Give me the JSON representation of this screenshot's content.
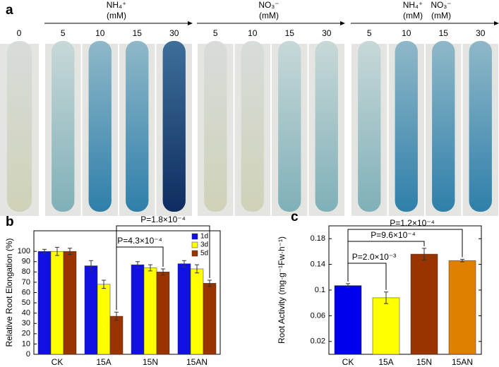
{
  "panel_a": {
    "label": "a",
    "control": 0,
    "groups": [
      {
        "name": "NH₄⁺",
        "unit": "(mM)",
        "concentrations": [
          5,
          10,
          15,
          30
        ]
      },
      {
        "name": "NO₃⁻",
        "unit": "(mM)",
        "concentrations": [
          5,
          10,
          15,
          30
        ]
      },
      {
        "name": "NH₄⁺",
        "unit": "(mM)",
        "name2": "NO₃⁻",
        "unit2": "(mM)",
        "concentrations": [
          5,
          10,
          15,
          30
        ]
      }
    ]
  },
  "chart_data": [
    {
      "type": "bar",
      "panel_label": "b",
      "y_label": "Relative Root Elongation (%)",
      "categories": [
        "CK",
        "15A",
        "15N",
        "15AN"
      ],
      "series": [
        {
          "name": "1d",
          "color": "#1010e0",
          "values": [
            100,
            86,
            87,
            88
          ],
          "errors": [
            2,
            5,
            3,
            3
          ]
        },
        {
          "name": "3d",
          "color": "#ffff00",
          "values": [
            100,
            68,
            84,
            83
          ],
          "errors": [
            4,
            4,
            3,
            4
          ]
        },
        {
          "name": "5d",
          "color": "#993300",
          "values": [
            100,
            37,
            80,
            69
          ],
          "errors": [
            3,
            4,
            3,
            3
          ]
        }
      ],
      "ylim": [
        0,
        120
      ],
      "yticks": [
        0,
        10,
        20,
        30,
        40,
        50,
        60,
        70,
        80,
        90,
        100
      ],
      "legend": "upper-right",
      "annotations": [
        "P=1.8×10⁻⁴",
        "P=4.3×10⁻⁴"
      ]
    },
    {
      "type": "bar",
      "panel_label": "c",
      "y_label": "Root Activity (mg·g⁻¹Fw·h⁻¹)",
      "categories": [
        "CK",
        "15A",
        "15N",
        "15AN"
      ],
      "values": [
        0.107,
        0.088,
        0.156,
        0.146
      ],
      "errors": [
        0.003,
        0.009,
        0.009,
        0.002
      ],
      "colors": [
        "#0000ee",
        "#ffff00",
        "#993300",
        "#e08000"
      ],
      "ylim": [
        0,
        0.2
      ],
      "yticks": [
        0.02,
        0.06,
        0.1,
        0.14,
        0.18
      ],
      "annotations": [
        "P=2.0×10⁻³",
        "P=9.6×10⁻⁴",
        "P=1.2×10⁻⁴"
      ]
    }
  ]
}
